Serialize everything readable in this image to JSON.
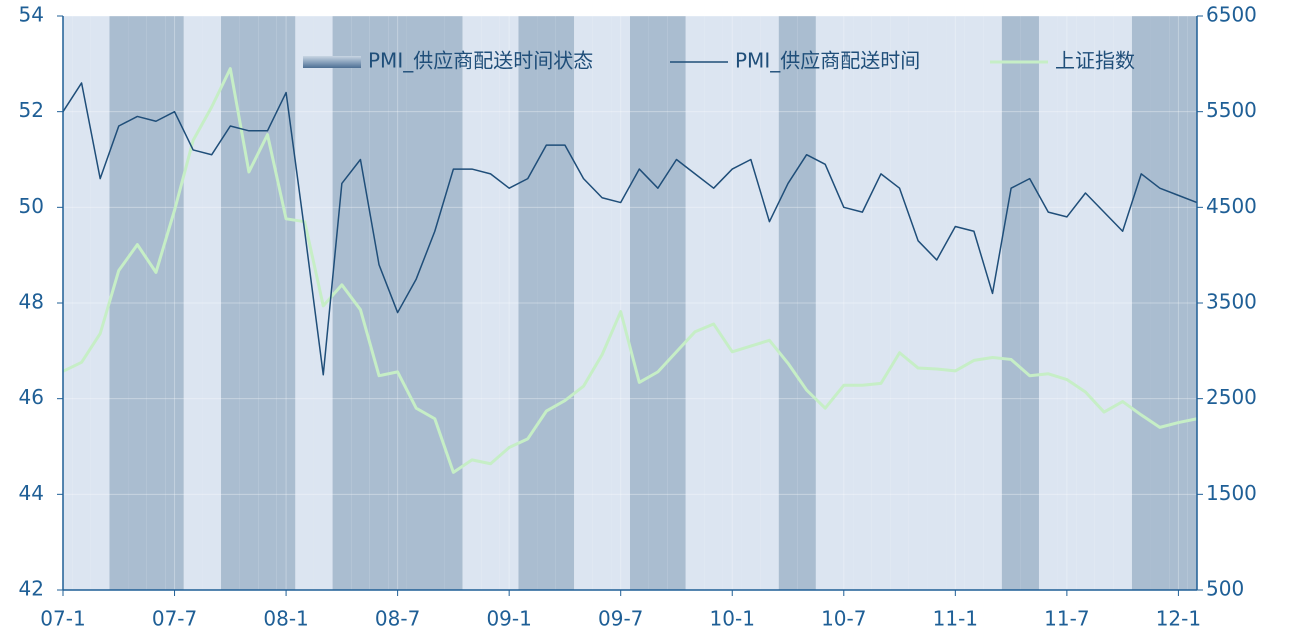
{
  "chart_data": {
    "type": "line",
    "categories": [
      "07-1",
      null,
      null,
      null,
      null,
      null,
      "07-7",
      null,
      null,
      null,
      null,
      null,
      "08-1",
      null,
      null,
      null,
      null,
      null,
      "08-7",
      null,
      null,
      null,
      null,
      null,
      "09-1",
      null,
      null,
      null,
      null,
      null,
      "09-7",
      null,
      null,
      null,
      null,
      null,
      "10-1",
      null,
      null,
      null,
      null,
      null,
      "10-7",
      null,
      null,
      null,
      null,
      null,
      "11-1",
      null,
      null,
      null,
      null,
      null,
      "11-7",
      null,
      null,
      null,
      null,
      null,
      "12-1",
      null
    ],
    "series": [
      {
        "name": "PMI_供应商配送时间状态",
        "type": "band",
        "colors": [
          "#dce5f1",
          "#aabdd0"
        ],
        "values": [
          0,
          0,
          0,
          1,
          1,
          1,
          1,
          0,
          0,
          1,
          1,
          1,
          1,
          0,
          0,
          1,
          1,
          1,
          1,
          1,
          1,
          1,
          0,
          0,
          0,
          1,
          1,
          1,
          0,
          0,
          0,
          1,
          1,
          1,
          0,
          0,
          0,
          0,
          0,
          1,
          1,
          0,
          0,
          0,
          0,
          0,
          0,
          0,
          0,
          0,
          0,
          1,
          1,
          0,
          0,
          0,
          0,
          0,
          1,
          1,
          1,
          1
        ]
      },
      {
        "name": "PMI_供应商配送时间",
        "color": "#1f4e79",
        "values": [
          52.0,
          52.6,
          50.6,
          51.7,
          51.9,
          51.8,
          52.0,
          51.2,
          51.1,
          51.7,
          51.6,
          51.6,
          52.4,
          49.5,
          46.5,
          50.5,
          51.0,
          48.8,
          47.8,
          48.5,
          49.5,
          50.8,
          50.8,
          50.7,
          50.4,
          50.6,
          51.3,
          51.3,
          50.6,
          50.2,
          50.1,
          50.8,
          50.4,
          51.0,
          50.7,
          50.4,
          50.8,
          51.0,
          49.7,
          50.5,
          51.1,
          50.9,
          50.0,
          49.9,
          50.7,
          50.4,
          49.3,
          48.9,
          49.6,
          49.5,
          48.2,
          50.4,
          50.6,
          49.9,
          49.8,
          50.3,
          49.9,
          49.5,
          50.7,
          50.4,
          50.25,
          50.1
        ]
      },
      {
        "name": "上证指数",
        "color": "#c6eec6",
        "axis": "y2",
        "values": [
          2786,
          2880,
          3180,
          3840,
          4110,
          3820,
          4470,
          5200,
          5550,
          5950,
          4870,
          5260,
          4380,
          4350,
          3470,
          3690,
          3430,
          2740,
          2780,
          2400,
          2290,
          1730,
          1860,
          1820,
          1990,
          2080,
          2370,
          2480,
          2630,
          2960,
          3410,
          2670,
          2780,
          2990,
          3200,
          3280,
          2990,
          3050,
          3110,
          2870,
          2590,
          2400,
          2640,
          2640,
          2660,
          2980,
          2820,
          2810,
          2790,
          2900,
          2930,
          2910,
          2740,
          2760,
          2700,
          2570,
          2360,
          2470,
          2330,
          2200,
          2250,
          2290
        ]
      }
    ],
    "ylim": [
      42,
      54
    ],
    "yticks": [
      42,
      44,
      46,
      48,
      50,
      52,
      54
    ],
    "y2lim": [
      500,
      6500
    ],
    "y2ticks": [
      500,
      1500,
      2500,
      3500,
      4500,
      5500,
      6500
    ],
    "grid": true
  }
}
